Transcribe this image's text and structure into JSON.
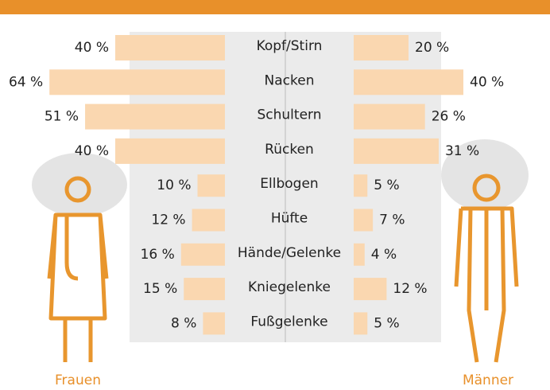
{
  "chart_data": {
    "type": "butterfly",
    "categories": [
      "Kopf/Stirn",
      "Nacken",
      "Schultern",
      "Rücken",
      "Ellbogen",
      "Hüfte",
      "Hände/Gelenke",
      "Kniegelenke",
      "Fußgelenke"
    ],
    "series": [
      {
        "name": "Frauen",
        "color": "#fad7b0",
        "values": [
          40,
          64,
          51,
          40,
          10,
          12,
          16,
          15,
          8
        ],
        "value_labels": [
          "40 %",
          "64 %",
          "51 %",
          "40 %",
          "10 %",
          "12 %",
          "16 %",
          "15 %",
          "8 %"
        ]
      },
      {
        "name": "Männer",
        "color": "#fad7b0",
        "values": [
          20,
          40,
          26,
          31,
          5,
          7,
          4,
          12,
          5
        ],
        "value_labels": [
          "20 %",
          "40 %",
          "26 %",
          "31 %",
          "5 %",
          "7 %",
          "4 %",
          "12 %",
          "5 %"
        ]
      }
    ]
  }
}
